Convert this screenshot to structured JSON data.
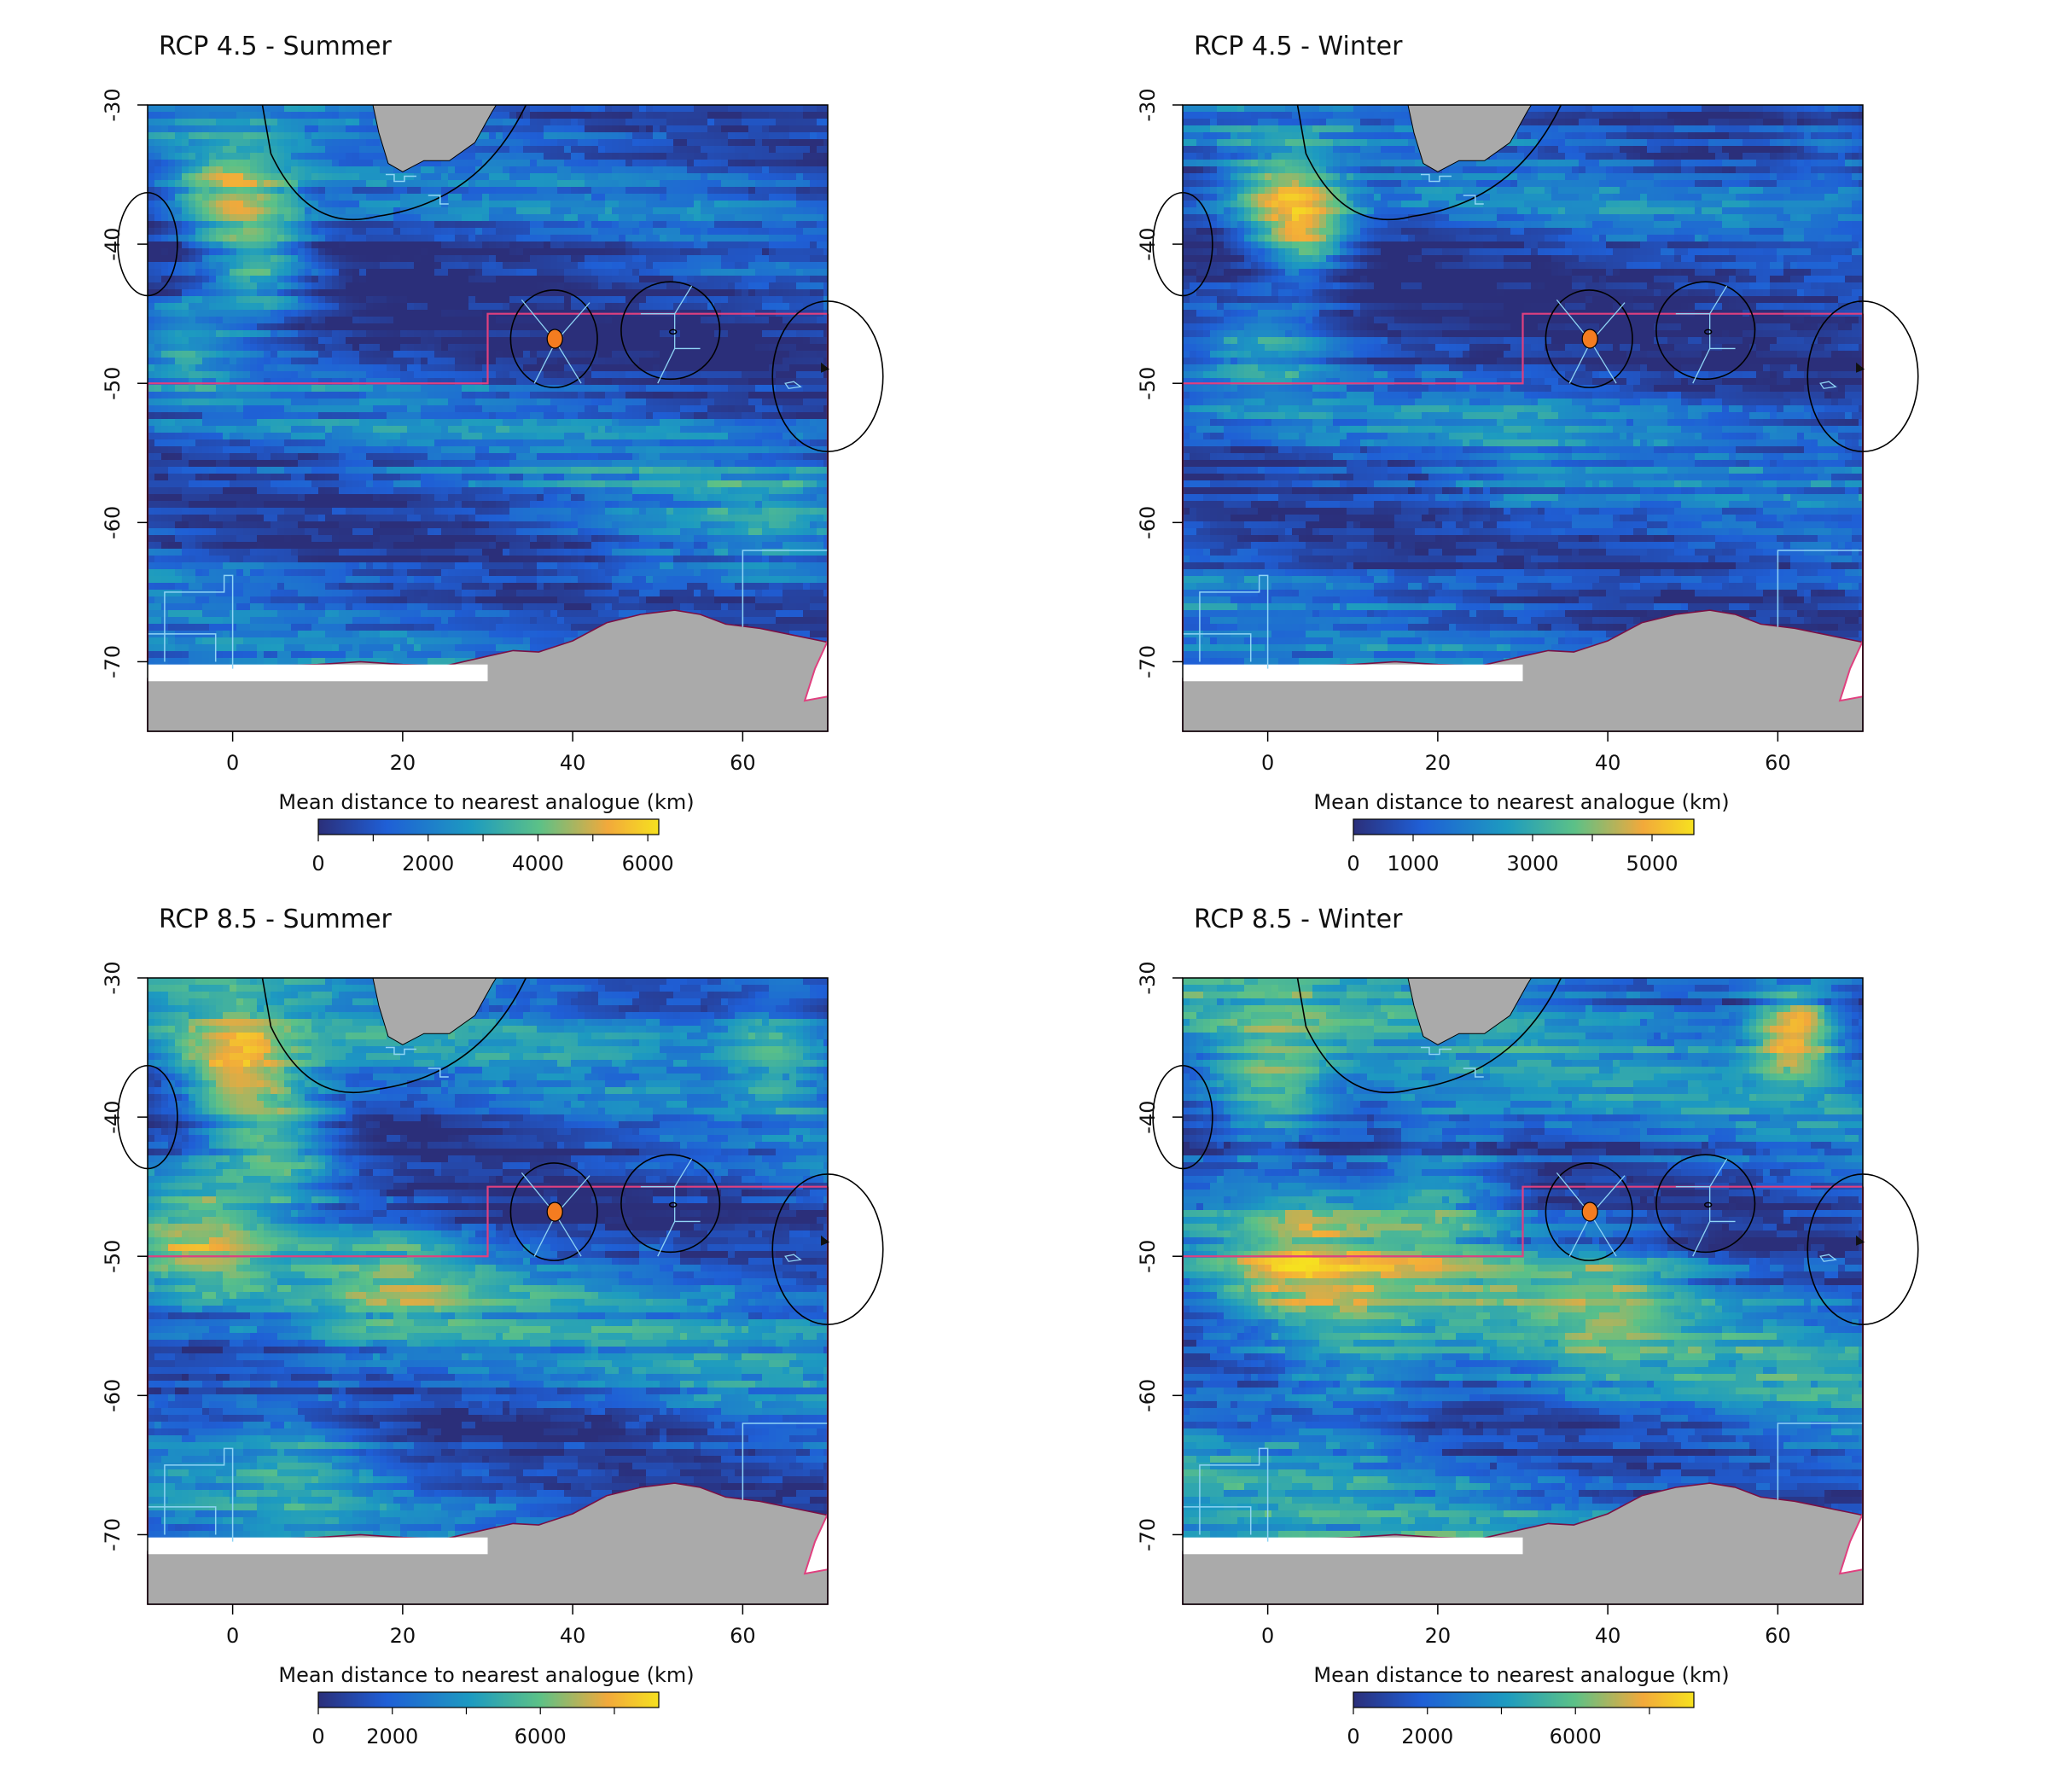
{
  "figure": {
    "panels": [
      {
        "id": "rcp45-summer",
        "title": "RCP 4.5 - Summer",
        "colorbar": {
          "label": "Mean distance to nearest analogue (km)",
          "min": 0,
          "max": 6200,
          "ticks": [
            0,
            2000,
            4000,
            6000
          ],
          "tick_marks": [
            0,
            1000,
            2000,
            3000,
            4000,
            5000,
            6000
          ]
        },
        "intensity": 0.35
      },
      {
        "id": "rcp45-winter",
        "title": "RCP 4.5 - Winter",
        "colorbar": {
          "label": "Mean distance to nearest analogue (km)",
          "min": 0,
          "max": 5700,
          "ticks": [
            0,
            1000,
            3000,
            5000
          ],
          "tick_marks": [
            0,
            1000,
            2000,
            3000,
            4000,
            5000
          ]
        },
        "intensity": 0.33
      },
      {
        "id": "rcp85-summer",
        "title": "RCP 8.5 - Summer",
        "colorbar": {
          "label": "Mean distance to nearest analogue (km)",
          "min": 0,
          "max": 9200,
          "ticks": [
            0,
            2000,
            6000
          ],
          "tick_marks": [
            0,
            2000,
            4000,
            6000,
            8000
          ]
        },
        "intensity": 0.45
      },
      {
        "id": "rcp85-winter",
        "title": "RCP 8.5 - Winter",
        "colorbar": {
          "label": "Mean distance to nearest analogue (km)",
          "min": 0,
          "max": 9200,
          "ticks": [
            0,
            2000,
            6000
          ],
          "tick_marks": [
            0,
            2000,
            4000,
            6000,
            8000
          ]
        },
        "intensity": 0.5
      }
    ],
    "axes": {
      "xlim": [
        -10,
        70
      ],
      "ylim": [
        -75,
        -30
      ],
      "xticks": [
        0,
        20,
        40,
        60
      ],
      "yticks": [
        -30,
        -40,
        -50,
        -60,
        -70
      ]
    },
    "colors": {
      "palette": [
        "#2b2f7a",
        "#1f5fd6",
        "#1d9bc0",
        "#5cc187",
        "#f2a93b",
        "#f6e11f"
      ],
      "land": "#aaaaaa",
      "boundary": "#e0407f",
      "islands": "#f47c20",
      "outline": "#000000",
      "mpa": "#8fd4f5"
    }
  }
}
